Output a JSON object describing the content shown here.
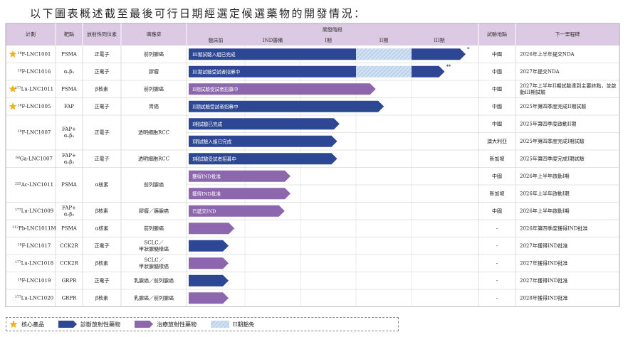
{
  "title": "以下圖表概述截至最後可行日期經選定候選藥物的開發情況：",
  "headers": {
    "program": "計劃",
    "target": "靶點",
    "isotope": "放射性同位素",
    "indication": "適應症",
    "dev_stage": "開發階段",
    "location": "試驗地點",
    "milestone": "下一里程碑"
  },
  "stages": [
    "臨床前",
    "IND籌備",
    "I期",
    "II期",
    "III期"
  ],
  "colors": {
    "header_bg": "#dcc9e3",
    "diagnostic": "#2e4794",
    "therapeutic": "#8c67ad",
    "star": "#f2b01e",
    "exempt": "#cfe0f2"
  },
  "legend": {
    "core": "核心產品",
    "diagnostic": "診斷放射性藥物",
    "therapeutic": "治療放射性藥物",
    "exempt": "II期豁免"
  },
  "chart_data": {
    "type": "table",
    "stage_axis": [
      "臨床前",
      "IND籌備",
      "I期",
      "II期",
      "III期"
    ],
    "programs": [
      {
        "iso_sup": "18",
        "name": "F-LNC1001",
        "core": true,
        "target": "PSMA",
        "isotope": "正電子",
        "indication": "前列腺癌",
        "type": "diagnostic",
        "trials": [
          {
            "label": "III期試驗入組已完成",
            "progress": 4.78,
            "phase2_exempt": true,
            "note": "*",
            "location": "中國",
            "milestone": "2026年上半年提交NDA"
          }
        ]
      },
      {
        "iso_sup": "18",
        "name": "F-LNC1016",
        "core": false,
        "target": "αᵥβ₃",
        "isotope": "正電子",
        "indication": "膠瘤",
        "type": "diagnostic",
        "trials": [
          {
            "label": "III期試驗受試者招募中",
            "progress": 4.42,
            "phase2_exempt": true,
            "note": "**",
            "location": "中國",
            "milestone": "2027年提交NDA"
          }
        ]
      },
      {
        "iso_sup": "177",
        "name": "Lu-LNC1011",
        "core": true,
        "target": "PSMA",
        "isotope": "β核素",
        "indication": "前列腺癌",
        "type": "therapeutic",
        "trials": [
          {
            "label": "II期試驗受試者招募中",
            "progress": 3.24,
            "phase2_exempt": false,
            "note": "",
            "location": "中國",
            "milestone": "2027年上半年II期試驗達到主要終點，並啟動III期試驗"
          }
        ]
      },
      {
        "iso_sup": "18",
        "name": "F-LNC1005",
        "core": true,
        "target": "FAP",
        "isotope": "正電子",
        "indication": "胃癌",
        "type": "diagnostic",
        "trials": [
          {
            "label": "II期試驗受試者招募中",
            "progress": 3.38,
            "phase2_exempt": false,
            "note": "",
            "location": "中國",
            "milestone": "2025年第四季度完成II期試驗"
          }
        ]
      },
      {
        "iso_sup": "18",
        "name": "F-LNC1007",
        "core": false,
        "target": "FAP+\nαᵥβ₃",
        "isotope": "正電子",
        "indication": "透明細胞RCC",
        "type": "diagnostic",
        "trials": [
          {
            "label": "I期試驗已完成",
            "progress": 2.62,
            "phase2_exempt": false,
            "note": "",
            "location": "中國",
            "milestone": "2025年第四季度啟動II期"
          },
          {
            "label": "I期試驗入組已完成",
            "progress": 2.58,
            "phase2_exempt": false,
            "note": "",
            "location": "澳大利亞",
            "milestone": "2025年第四季度完成I期試驗"
          }
        ]
      },
      {
        "iso_sup": "68",
        "name": "Ga-LNC1007",
        "core": false,
        "target": "FAP+\nαᵥβ₃",
        "isotope": "正電子",
        "indication": "透明細胞RCC",
        "type": "diagnostic",
        "trials": [
          {
            "label": "I期試驗受試者招募中",
            "progress": 2.58,
            "phase2_exempt": false,
            "note": "",
            "location": "新加坡",
            "milestone": "2025年第四季度完成I期試驗"
          }
        ]
      },
      {
        "iso_sup": "225",
        "name": "Ac-LNC1011",
        "core": false,
        "target": "PSMA",
        "isotope": "α核素",
        "indication": "前列腺癌",
        "type": "therapeutic",
        "trials": [
          {
            "label": "獲得IND批准",
            "progress": 1.78,
            "phase2_exempt": false,
            "note": "",
            "location": "中國",
            "milestone": "2026年上半年啟動I期"
          },
          {
            "label": "獲得IND批准",
            "progress": 1.78,
            "phase2_exempt": false,
            "note": "",
            "location": "新加坡",
            "milestone": "2026年上半年啟動I期"
          }
        ]
      },
      {
        "iso_sup": "177",
        "name": "Lu-LNC1009",
        "core": false,
        "target": "FAP+\nαᵥβ₃",
        "isotope": "β核素",
        "indication": "膠瘤／胰腺癌",
        "type": "therapeutic",
        "trials": [
          {
            "label": "已遞交IND",
            "progress": 1.68,
            "phase2_exempt": false,
            "note": "",
            "location": "中國",
            "milestone": "2026年上半年啟動I期"
          }
        ]
      },
      {
        "iso_sup": "212",
        "name": "Pb-LNC1011M",
        "core": false,
        "target": "PSMA",
        "isotope": "α核素",
        "indication": "前列腺癌",
        "type": "therapeutic",
        "trials": [
          {
            "label": "",
            "progress": 0.82,
            "phase2_exempt": false,
            "note": "",
            "location": "-",
            "milestone": "2026年第四季度獲得IND批准"
          }
        ]
      },
      {
        "iso_sup": "18",
        "name": "F-LNC1017",
        "core": false,
        "target": "CCK2R",
        "isotope": "正電子",
        "indication": "SCLC／\n甲狀腺髓樣癌",
        "type": "diagnostic",
        "trials": [
          {
            "label": "",
            "progress": 0.72,
            "phase2_exempt": false,
            "note": "",
            "location": "-",
            "milestone": "2027年獲得IND批准"
          }
        ]
      },
      {
        "iso_sup": "177",
        "name": "Lu-LNC1018",
        "core": false,
        "target": "CCK2R",
        "isotope": "β核素",
        "indication": "SCLC／\n甲狀腺髓樣癌",
        "type": "therapeutic",
        "trials": [
          {
            "label": "",
            "progress": 0.72,
            "phase2_exempt": false,
            "note": "",
            "location": "-",
            "milestone": "2027年獲得IND批准"
          }
        ]
      },
      {
        "iso_sup": "18",
        "name": "F-LNC1019",
        "core": false,
        "target": "GRPR",
        "isotope": "正電子",
        "indication": "乳腺癌／前列腺癌",
        "type": "diagnostic",
        "trials": [
          {
            "label": "",
            "progress": 0.72,
            "phase2_exempt": false,
            "note": "",
            "location": "-",
            "milestone": "2027年獲得IND批准"
          }
        ]
      },
      {
        "iso_sup": "177",
        "name": "Lu-LNC1020",
        "core": false,
        "target": "GRPR",
        "isotope": "β核素",
        "indication": "乳腺癌／前列腺癌",
        "type": "therapeutic",
        "trials": [
          {
            "label": "",
            "progress": 0.72,
            "phase2_exempt": false,
            "note": "",
            "location": "-",
            "milestone": "2028年獲得IND批准"
          }
        ]
      }
    ]
  }
}
